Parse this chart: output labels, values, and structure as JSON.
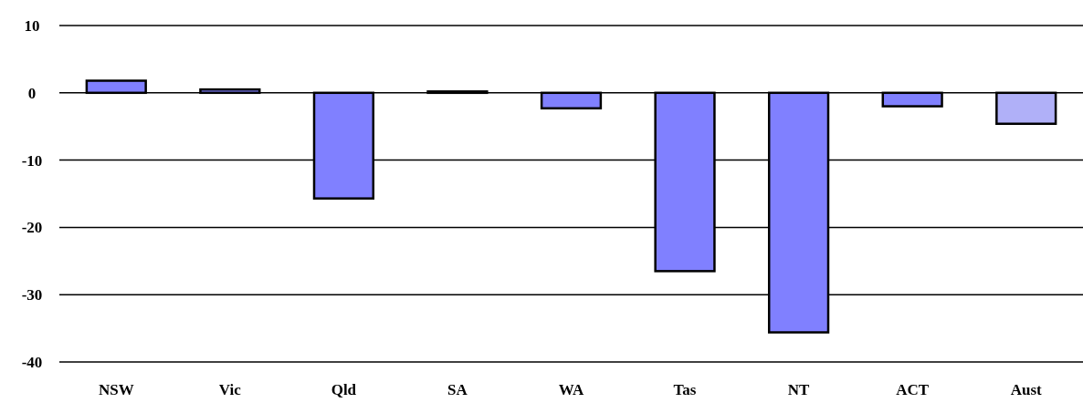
{
  "chart_data": {
    "type": "bar",
    "categories": [
      "NSW",
      "Vic",
      "Qld",
      "SA",
      "WA",
      "Tas",
      "NT",
      "ACT",
      "Aust"
    ],
    "values": [
      1.8,
      0.5,
      -15.7,
      0.2,
      -2.3,
      -26.5,
      -35.6,
      -2.0,
      -4.6
    ],
    "colors": [
      "#8080ff",
      "#8080ff",
      "#8080ff",
      "#8080ff",
      "#8080ff",
      "#8080ff",
      "#8080ff",
      "#8080ff",
      "#b0b0f8"
    ],
    "ylim": [
      -40,
      10
    ],
    "yticks": [
      10,
      0,
      -10,
      -20,
      -30,
      -40
    ],
    "grid": "y"
  }
}
